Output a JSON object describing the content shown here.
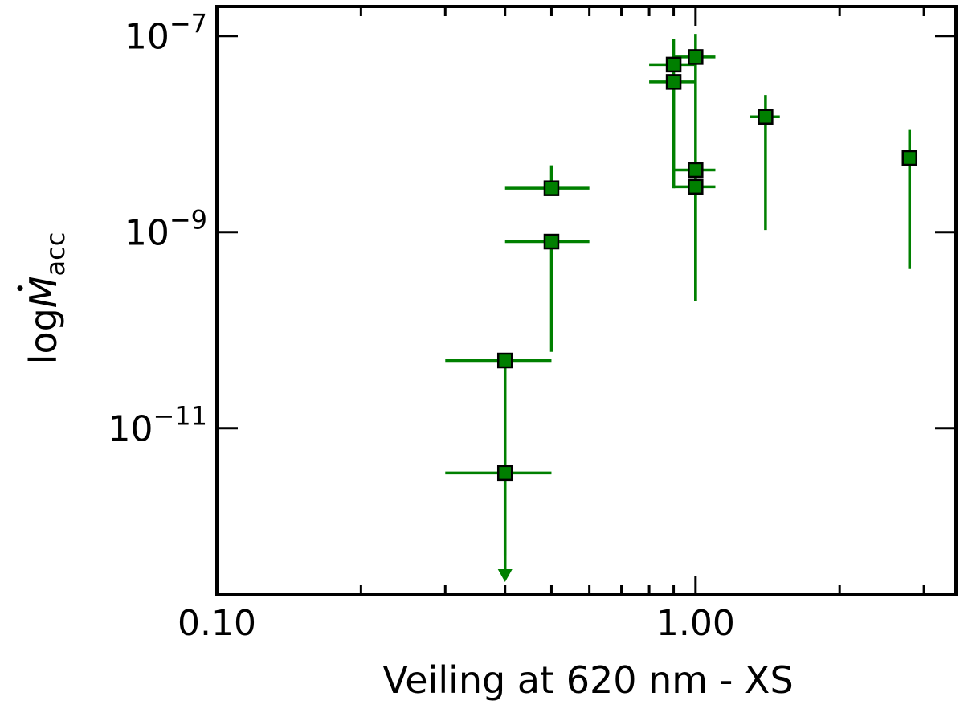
{
  "chart_data": {
    "type": "scatter",
    "xlabel": "Veiling at 620 nm - XS",
    "ylabel": {
      "main": "log",
      "symbol": "M",
      "sub": "acc"
    },
    "xscale": "log",
    "yscale": "log",
    "xlim": [
      0.1,
      3.5
    ],
    "ylim": [
      2e-13,
      2e-07
    ],
    "x_ticks": [
      {
        "value": 0.1,
        "label": "0.10"
      },
      {
        "value": 1.0,
        "label": "1.00"
      }
    ],
    "y_ticks": [
      {
        "value": 1e-07,
        "base": "10",
        "exp": "−7"
      },
      {
        "value": 1e-09,
        "base": "10",
        "exp": "−9"
      },
      {
        "value": 1e-11,
        "base": "10",
        "exp": "−11"
      }
    ],
    "grid": false,
    "marker_color": "#007f00",
    "errorbar_color": "#008000",
    "points": [
      {
        "x": 0.4,
        "y": 4.9e-11,
        "x_lo": 0.3,
        "x_hi": 0.5,
        "y_lo": 5e-13,
        "y_hi": 4.9e-11,
        "upper_limit": true
      },
      {
        "x": 0.4,
        "y": 3.5e-12,
        "x_lo": 0.3,
        "x_hi": 0.5,
        "y_lo": 5e-13,
        "y_hi": 3.5e-12,
        "upper_limit": false
      },
      {
        "x": 0.5,
        "y": 2.8e-09,
        "x_lo": 0.4,
        "x_hi": 0.6,
        "y_lo": 2.8e-09,
        "y_hi": 4.8e-09
      },
      {
        "x": 0.5,
        "y": 8e-10,
        "x_lo": 0.4,
        "x_hi": 0.6,
        "y_lo": 6e-11,
        "y_hi": 8e-10
      },
      {
        "x": 0.9,
        "y": 5.1e-08,
        "x_lo": 0.8,
        "x_hi": 1.0,
        "y_lo": 2.8e-09,
        "y_hi": 9.3e-08
      },
      {
        "x": 0.9,
        "y": 3.4e-08,
        "x_lo": 0.8,
        "x_hi": 1.0,
        "y_lo": 2.8e-09,
        "y_hi": 3.4e-08
      },
      {
        "x": 1.0,
        "y": 6.1e-08,
        "x_lo": 0.9,
        "x_hi": 1.1,
        "y_lo": 2e-10,
        "y_hi": 1.05e-07
      },
      {
        "x": 1.0,
        "y": 4.3e-09,
        "x_lo": 0.9,
        "x_hi": 1.1,
        "y_lo": 2e-10,
        "y_hi": 4.3e-09
      },
      {
        "x": 1.0,
        "y": 2.9e-09,
        "x_lo": 0.9,
        "x_hi": 1.1,
        "y_lo": 2e-10,
        "y_hi": 2.9e-09
      },
      {
        "x": 1.4,
        "y": 1.5e-08,
        "x_lo": 1.3,
        "x_hi": 1.5,
        "y_lo": 1.05e-09,
        "y_hi": 2.5e-08
      },
      {
        "x": 2.8,
        "y": 5.7e-09,
        "x_lo": 2.8,
        "x_hi": 2.8,
        "y_lo": 4.2e-10,
        "y_hi": 1.1e-08
      }
    ]
  }
}
